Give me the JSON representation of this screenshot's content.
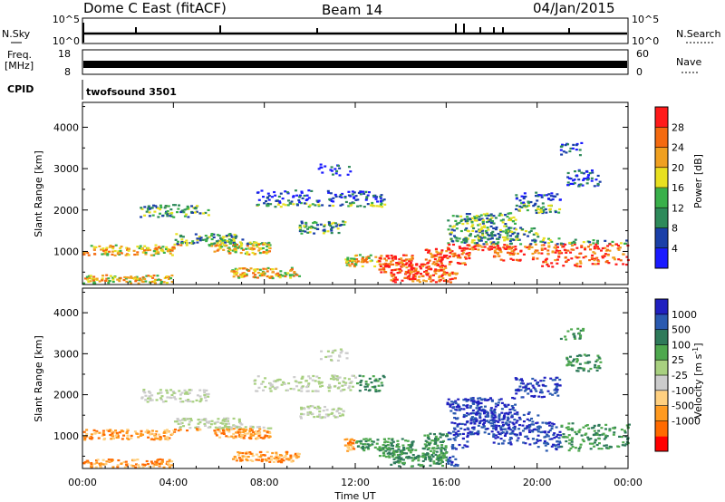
{
  "header": {
    "title": "Dome C East (fitACF)",
    "beam": "Beam 14",
    "date": "04/Jan/2015"
  },
  "strips": {
    "nsky_label": "N.Sky",
    "nsearch_label": "N.Search",
    "nsky_ticks": [
      "10^5",
      "10^0"
    ],
    "freq_label": "Freq.",
    "freq_unit": "[MHz]",
    "freq_ticks": [
      "18",
      "8"
    ],
    "nave_label": "Nave",
    "nave_ticks": [
      "60",
      "0"
    ],
    "cpid_label": "CPID",
    "cpid_value": "twofsound 3501"
  },
  "colors": {
    "power": [
      "#1a1aff",
      "#1a3fa8",
      "#2e8a5a",
      "#39b04a",
      "#e8e020",
      "#f0a020",
      "#f46a10",
      "#ff1a1a"
    ],
    "velocity": [
      "#ff0000",
      "#ff6a00",
      "#ff9a20",
      "#ffd080",
      "#cccccc",
      "#a8d080",
      "#4ea84e",
      "#2e7a5a",
      "#2a5ab0",
      "#2020c0"
    ]
  },
  "chart_data": [
    {
      "type": "heatmap",
      "name": "power",
      "ylabel": "Slant Range [km]",
      "yticks": [
        1000,
        2000,
        3000,
        4000
      ],
      "ylim": [
        200,
        4600
      ],
      "xlim": [
        0,
        24
      ],
      "colorbar_label": "Power [dB]",
      "colorbar_ticks": [
        4,
        8,
        12,
        16,
        20,
        24,
        28
      ],
      "colorbar_range": [
        0,
        32
      ]
    },
    {
      "type": "heatmap",
      "name": "velocity",
      "xlabel": "Time UT",
      "ylabel": "Slant Range [km]",
      "yticks": [
        1000,
        2000,
        3000,
        4000
      ],
      "ylim": [
        200,
        4600
      ],
      "xlim": [
        0,
        24
      ],
      "xticks": [
        "00:00",
        "04:00",
        "08:00",
        "12:00",
        "16:00",
        "20:00",
        "00:00"
      ],
      "colorbar_label": "Velocity [m s^-1]",
      "colorbar_ticks": [
        1000,
        500,
        100,
        25,
        -25,
        -100,
        -500,
        -1000
      ]
    }
  ]
}
